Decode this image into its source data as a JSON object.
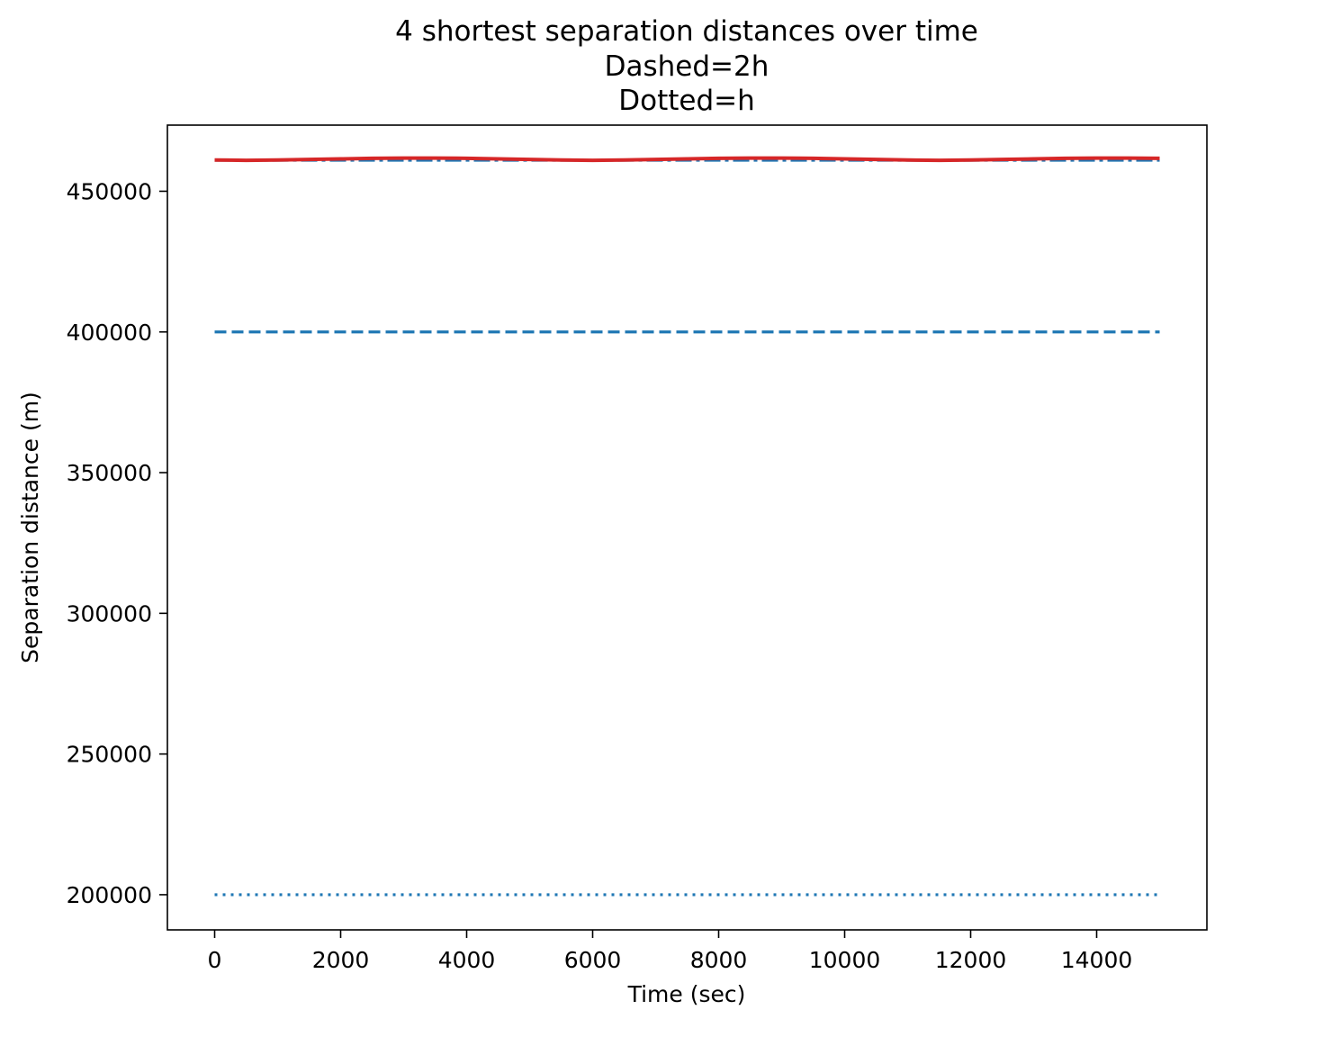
{
  "chart_data": {
    "type": "line",
    "title": [
      "4 shortest separation distances over time",
      "Dashed=2h",
      "Dotted=h"
    ],
    "xlabel": "Time (sec)",
    "ylabel": "Separation distance (m)",
    "xlim": [
      -750,
      15750
    ],
    "ylim": [
      187500,
      473500
    ],
    "grid": false,
    "xticks": [
      0,
      2000,
      4000,
      6000,
      8000,
      10000,
      12000,
      14000
    ],
    "yticks": [
      200000,
      250000,
      300000,
      350000,
      400000,
      450000
    ],
    "series": [
      {
        "style": "dashed",
        "color": "#1f77b4",
        "x": [
          0,
          15000
        ],
        "y": [
          400000,
          400000
        ]
      },
      {
        "style": "dotted",
        "color": "#1f77b4",
        "x": [
          0,
          15000
        ],
        "y": [
          200000,
          200000
        ]
      },
      {
        "style": "dashdot",
        "color": "#1f77b4",
        "x": [
          0,
          15000
        ],
        "y": [
          461000,
          461000
        ]
      },
      {
        "style": "solid",
        "color": "#d62728",
        "x": [
          0,
          500,
          1000,
          1500,
          2000,
          2500,
          3000,
          3500,
          4000,
          4500,
          5000,
          5500,
          6000,
          6500,
          7000,
          7500,
          8000,
          8500,
          9000,
          9500,
          10000,
          10500,
          11000,
          11500,
          12000,
          12500,
          13000,
          13500,
          14000,
          14500,
          15000
        ],
        "y": [
          461100,
          461000,
          461100,
          461300,
          461500,
          461700,
          461800,
          461800,
          461700,
          461500,
          461300,
          461100,
          461000,
          461100,
          461300,
          461500,
          461700,
          461800,
          461800,
          461700,
          461500,
          461300,
          461100,
          461000,
          461100,
          461300,
          461500,
          461700,
          461800,
          461800,
          461700
        ]
      }
    ]
  }
}
